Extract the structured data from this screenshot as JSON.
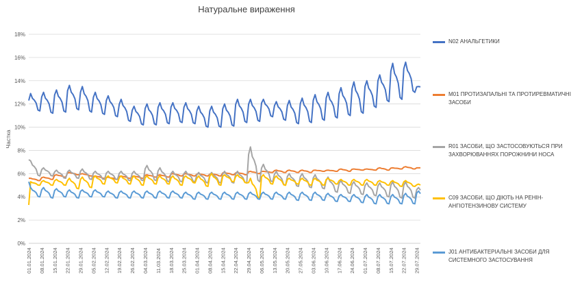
{
  "chart_data": {
    "type": "line",
    "title": "Натуральне вираження",
    "ylabel": "Частка",
    "xlabel": "",
    "ylim": [
      0,
      18
    ],
    "y_ticks": [
      "0%",
      "2%",
      "4%",
      "6%",
      "8%",
      "10%",
      "12%",
      "14%",
      "16%",
      "18%"
    ],
    "grid": true,
    "legend_position": "right",
    "x_ticks": [
      "01.01.2024",
      "08.01.2024",
      "15.01.2024",
      "22.01.2024",
      "29.01.2024",
      "05.02.2024",
      "12.02.2024",
      "19.02.2024",
      "26.02.2024",
      "04.03.2024",
      "11.03.2024",
      "18.03.2024",
      "25.03.2024",
      "01.04.2024",
      "08.04.2024",
      "15.04.2024",
      "22.04.2024",
      "29.04.2024",
      "06.05.2024",
      "13.05.2024",
      "20.05.2024",
      "27.05.2024",
      "03.06.2024",
      "10.06.2024",
      "17.06.2024",
      "24.06.2024",
      "01.07.2024",
      "08.07.2024",
      "15.07.2024",
      "22.07.2024",
      "29.07.2024"
    ],
    "days": 213,
    "series": [
      {
        "name": "N02 АНАЛЬГЕТИКИ",
        "color": "#4472C4",
        "weekly_base": [
          11.4,
          11.2,
          11.3,
          11.5,
          11.3,
          11.1,
          10.9,
          10.5,
          10.2,
          10.2,
          10.3,
          10.4,
          10.3,
          10.0,
          10.0,
          10.1,
          10.4,
          10.5,
          10.9,
          10.6,
          10.3,
          10.4,
          10.6,
          10.8,
          11.0,
          11.2,
          11.7,
          12.2,
          12.4,
          13.0,
          13.4
        ],
        "weekly_peak": [
          12.9,
          13.0,
          13.2,
          13.6,
          13.5,
          13.0,
          12.7,
          12.4,
          11.8,
          12.0,
          12.1,
          12.1,
          12.1,
          11.8,
          11.8,
          12.0,
          12.4,
          12.4,
          12.4,
          12.2,
          12.3,
          12.5,
          12.8,
          13.0,
          13.4,
          13.9,
          14.0,
          14.5,
          15.5,
          15.6,
          13.5
        ],
        "start": 12.3
      },
      {
        "name": "M01 ПРОТИЗАПАЛЬНІ ТА ПРОТИРЕВМАТИЧНІ ЗАСОБИ",
        "color": "#ED7D31",
        "weekly_base": [
          5.4,
          5.5,
          5.7,
          5.9,
          5.8,
          5.6,
          5.5,
          5.6,
          5.6,
          5.7,
          5.7,
          5.8,
          5.8,
          5.8,
          5.8,
          5.9,
          5.9,
          6.0,
          6.1,
          6.1,
          6.1,
          6.1,
          6.2,
          6.2,
          6.2,
          6.3,
          6.3,
          6.3,
          6.4,
          6.4,
          6.5
        ],
        "weekly_peak": [
          5.6,
          5.7,
          5.9,
          6.1,
          6.0,
          5.8,
          5.7,
          5.8,
          5.8,
          5.9,
          5.9,
          6.0,
          6.0,
          6.0,
          6.0,
          6.1,
          6.1,
          6.2,
          6.2,
          6.3,
          6.3,
          6.3,
          6.3,
          6.3,
          6.4,
          6.4,
          6.4,
          6.5,
          6.5,
          6.6,
          6.5
        ],
        "start": 5.6
      },
      {
        "name": "R01 ЗАСОБИ, ЩО ЗАСТОСОВУЮТЬСЯ ПРИ ЗАХВОРЮВАННЯХ ПОРОЖНИНИ НОСА",
        "color": "#A5A5A5",
        "weekly_base": [
          5.8,
          5.8,
          5.6,
          5.6,
          5.5,
          5.5,
          5.5,
          5.4,
          5.4,
          5.4,
          5.3,
          5.3,
          5.3,
          5.2,
          5.2,
          5.2,
          5.2,
          5.3,
          5.3,
          5.0,
          4.9,
          4.8,
          4.7,
          4.4,
          4.3,
          4.2,
          4.1,
          4.0,
          3.9,
          3.9,
          4.0
        ],
        "weekly_peak": [
          7.1,
          6.5,
          6.3,
          6.3,
          6.4,
          6.2,
          6.2,
          6.2,
          6.2,
          6.7,
          6.5,
          6.2,
          6.2,
          6.1,
          6.1,
          6.2,
          6.2,
          8.3,
          6.8,
          6.2,
          6.0,
          6.0,
          5.9,
          5.7,
          5.4,
          5.3,
          5.2,
          5.2,
          5.3,
          5.3,
          4.8
        ],
        "start": 7.2
      },
      {
        "name": "C09 ЗАСОБИ, ЩО ДІЮТЬ НА РЕНІН-АНГІОТЕНЗИНОВУ СИСТЕМУ",
        "color": "#FFC000",
        "weekly_base": [
          5.0,
          5.0,
          5.0,
          4.7,
          4.8,
          5.1,
          5.2,
          5.1,
          5.0,
          5.1,
          5.1,
          5.0,
          5.2,
          4.9,
          5.0,
          5.3,
          5.2,
          3.9,
          5.1,
          5.0,
          5.1,
          5.0,
          5.0,
          5.1,
          5.0,
          5.0,
          5.0,
          5.0,
          4.9,
          4.9,
          4.8
        ],
        "weekly_peak": [
          5.3,
          5.4,
          5.5,
          5.6,
          5.7,
          5.8,
          5.8,
          5.8,
          5.8,
          5.8,
          5.8,
          5.8,
          5.8,
          5.8,
          6.0,
          5.9,
          5.9,
          5.6,
          5.9,
          5.8,
          5.6,
          5.6,
          5.6,
          5.6,
          5.5,
          5.5,
          5.5,
          5.4,
          5.4,
          5.4,
          5.1
        ],
        "start": 3.3
      },
      {
        "name": "J01 АНТИБАКТЕРІАЛЬНІ ЗАСОБИ ДЛЯ СИСТЕМНОГО ЗАСТОСУВАННЯ",
        "color": "#5B9BD5",
        "weekly_base": [
          4.0,
          3.9,
          4.0,
          3.9,
          4.0,
          4.0,
          3.9,
          3.9,
          3.9,
          3.9,
          3.9,
          3.9,
          3.8,
          3.8,
          3.8,
          3.8,
          3.8,
          3.8,
          3.8,
          3.8,
          3.7,
          3.7,
          3.7,
          3.6,
          3.6,
          3.5,
          3.4,
          3.4,
          3.4,
          3.4,
          3.7
        ],
        "weekly_peak": [
          4.8,
          4.8,
          4.7,
          4.6,
          4.6,
          4.6,
          4.5,
          4.5,
          4.5,
          4.5,
          4.5,
          4.5,
          4.4,
          4.4,
          4.4,
          4.4,
          4.4,
          4.4,
          4.4,
          4.4,
          4.4,
          4.4,
          4.4,
          4.3,
          4.2,
          4.2,
          4.2,
          4.2,
          4.2,
          4.3,
          4.5
        ],
        "start": 5.3
      }
    ]
  },
  "legend": [
    {
      "label": "N02 АНАЛЬГЕТИКИ",
      "color": "#4472C4"
    },
    {
      "label": "M01 ПРОТИЗАПАЛЬНІ ТА ПРОТИРЕВМАТИЧНІ ЗАСОБИ",
      "color": "#ED7D31"
    },
    {
      "label": "R01 ЗАСОБИ, ЩО ЗАСТОСОВУЮТЬСЯ ПРИ ЗАХВОРЮВАННЯХ ПОРОЖНИНИ НОСА",
      "color": "#A5A5A5"
    },
    {
      "label": "C09 ЗАСОБИ, ЩО ДІЮТЬ НА РЕНІН-АНГІОТЕНЗИНОВУ СИСТЕМУ",
      "color": "#FFC000"
    },
    {
      "label": "J01 АНТИБАКТЕРІАЛЬНІ ЗАСОБИ ДЛЯ СИСТЕМНОГО ЗАСТОСУВАННЯ",
      "color": "#5B9BD5"
    }
  ]
}
